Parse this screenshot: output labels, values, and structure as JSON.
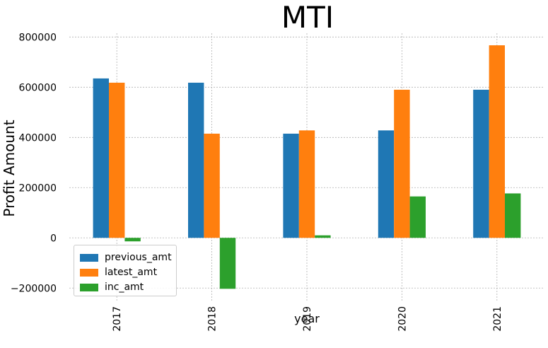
{
  "chart_data": {
    "type": "bar",
    "title": "MTI",
    "xlabel": "year",
    "ylabel": "Profit Amount",
    "categories": [
      "2017",
      "2018",
      "2019",
      "2020",
      "2021"
    ],
    "series": [
      {
        "name": "previous_amt",
        "color": "#1f77b4",
        "values": [
          635000,
          618000,
          415000,
          428000,
          590000
        ]
      },
      {
        "name": "latest_amt",
        "color": "#ff7f0e",
        "values": [
          618000,
          415000,
          428000,
          590000,
          767000
        ]
      },
      {
        "name": "inc_amt",
        "color": "#2ca02c",
        "values": [
          -14000,
          -203000,
          10000,
          165000,
          177000
        ]
      }
    ],
    "yticks": [
      -200000,
      0,
      200000,
      400000,
      600000,
      800000
    ],
    "ytick_labels": [
      "−200000",
      "0",
      "200000",
      "400000",
      "600000",
      "800000"
    ],
    "ylim": [
      -250000,
      815000
    ],
    "grid": true,
    "legend_position": "lower-left"
  }
}
